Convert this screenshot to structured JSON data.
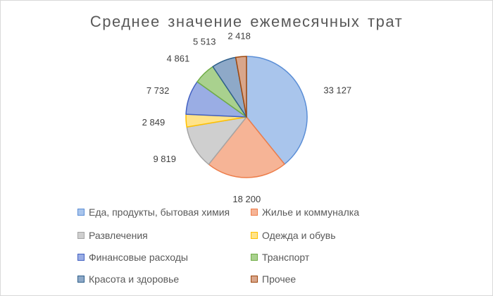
{
  "chart_data": {
    "type": "pie",
    "title": "Среднее значение ежемесячных трат",
    "legend_position": "bottom",
    "slices": [
      {
        "label": "Еда, продукты, бытовая химия",
        "value": 33127,
        "display": "33 127",
        "fill": "#a9c5ec",
        "stroke": "#5b8ed6"
      },
      {
        "label": "Жилье и коммуналка",
        "value": 18200,
        "display": "18 200",
        "fill": "#f6b496",
        "stroke": "#ed7d4a"
      },
      {
        "label": "Развлечения",
        "value": 9819,
        "display": "9 819",
        "fill": "#cfcfcf",
        "stroke": "#a5a5a5"
      },
      {
        "label": "Одежда и обувь",
        "value": 2849,
        "display": "2 849",
        "fill": "#ffe38a",
        "stroke": "#ffc000"
      },
      {
        "label": "Финансовые расходы",
        "value": 7732,
        "display": "7 732",
        "fill": "#9aade4",
        "stroke": "#4361c2"
      },
      {
        "label": "Транспорт",
        "value": 4861,
        "display": "4 861",
        "fill": "#a9d18e",
        "stroke": "#70ad47"
      },
      {
        "label": "Красота и здоровье",
        "value": 5513,
        "display": "5 513",
        "fill": "#8ea9c8",
        "stroke": "#2e5f8a"
      },
      {
        "label": "Прочее",
        "value": 2418,
        "display": "2 418",
        "fill": "#d9a68b",
        "stroke": "#9e480e"
      }
    ]
  }
}
